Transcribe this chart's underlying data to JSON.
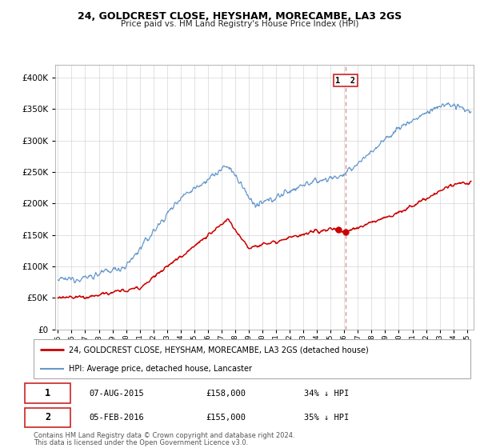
{
  "title": "24, GOLDCREST CLOSE, HEYSHAM, MORECAMBE, LA3 2GS",
  "subtitle": "Price paid vs. HM Land Registry's House Price Index (HPI)",
  "legend_label_red": "24, GOLDCREST CLOSE, HEYSHAM, MORECAMBE, LA3 2GS (detached house)",
  "legend_label_blue": "HPI: Average price, detached house, Lancaster",
  "transaction1_date": "07-AUG-2015",
  "transaction1_price": "£158,000",
  "transaction1_hpi": "34% ↓ HPI",
  "transaction2_date": "05-FEB-2016",
  "transaction2_price": "£155,000",
  "transaction2_hpi": "35% ↓ HPI",
  "footer1": "Contains HM Land Registry data © Crown copyright and database right 2024.",
  "footer2": "This data is licensed under the Open Government Licence v3.0.",
  "vline_x": 2016.08,
  "marker1_x": 2015.58,
  "marker1_y": 158000,
  "marker2_x": 2016.08,
  "marker2_y": 155000,
  "red_color": "#cc0000",
  "blue_color": "#6699cc",
  "vline_color": "#dd8888",
  "grid_color": "#cccccc",
  "ylim": [
    0,
    420000
  ],
  "xlim_start": 1994.8,
  "xlim_end": 2025.5,
  "yticks": [
    0,
    50000,
    100000,
    150000,
    200000,
    250000,
    300000,
    350000,
    400000
  ]
}
